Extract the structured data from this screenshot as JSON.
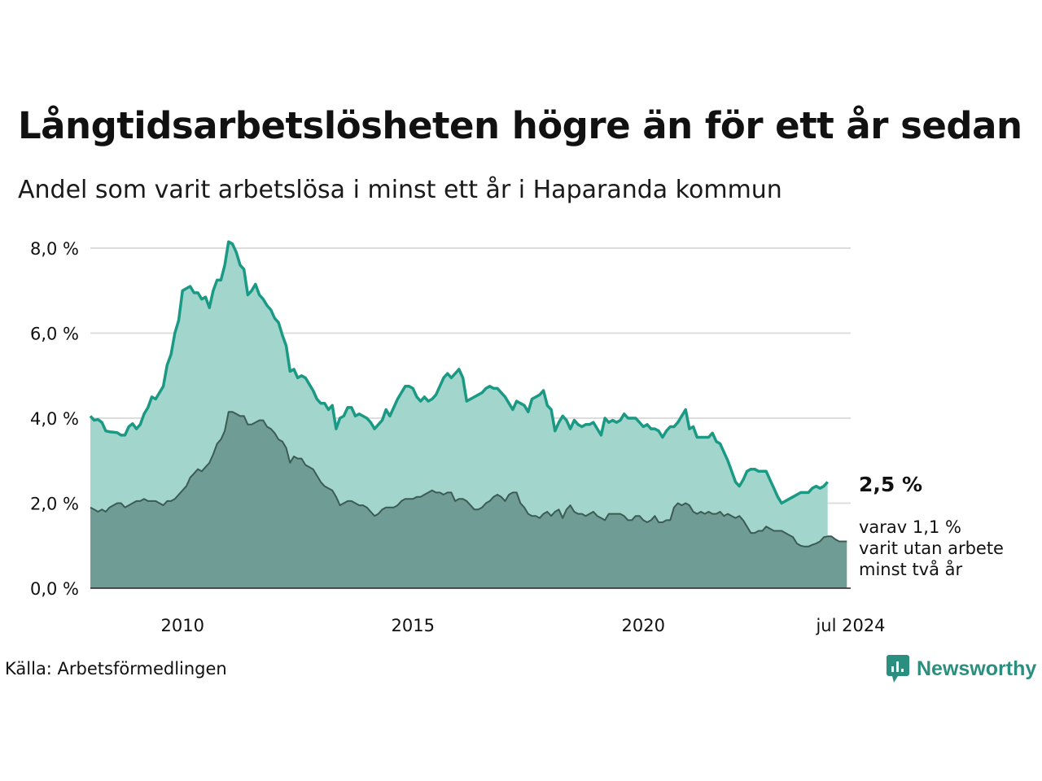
{
  "header": {
    "title": "Långtidsarbetslösheten högre än för ett år sedan",
    "subtitle": "Andel som varit arbetslösa i minst ett år i Haparanda kommun"
  },
  "footer": {
    "source": "Källa: Arbetsförmedlingen",
    "brand": "Newsworthy"
  },
  "colors": {
    "main_line": "#1a9984",
    "main_fill": "#a2d6cd",
    "sub_line": "#3c5b53",
    "sub_fill": "#6f9d95",
    "grid": "#dddddd",
    "brand": "#2a8f7f"
  },
  "chart_data": {
    "type": "area",
    "title": "Långtidsarbetslösheten högre än för ett år sedan",
    "xlabel": "",
    "ylabel": "",
    "x_start": 2008.0,
    "x_step_years": 0.0833333,
    "xlim": [
      2008.0,
      2024.5
    ],
    "ylim": [
      0,
      8
    ],
    "grid": true,
    "yticks": [
      0,
      2,
      4,
      6,
      8
    ],
    "ytick_labels": [
      "0,0 %",
      "2,0 %",
      "4,0 %",
      "6,0 %",
      "8,0 %"
    ],
    "xticks": [
      2010,
      2015,
      2020,
      2024.5
    ],
    "xtick_labels": [
      "2010",
      "2015",
      "2020",
      "jul 2024"
    ],
    "series": [
      {
        "name": "Andel som varit arbetslösa i minst ett år",
        "values": [
          4.05,
          3.95,
          3.97,
          3.9,
          3.7,
          3.68,
          3.67,
          3.66,
          3.6,
          3.6,
          3.8,
          3.87,
          3.75,
          3.85,
          4.1,
          4.25,
          4.5,
          4.45,
          4.6,
          4.75,
          5.25,
          5.5,
          6.0,
          6.3,
          7.0,
          7.05,
          7.1,
          6.95,
          6.95,
          6.8,
          6.85,
          6.6,
          7.0,
          7.25,
          7.25,
          7.6,
          8.15,
          8.1,
          7.9,
          7.6,
          7.5,
          6.9,
          7.0,
          7.15,
          6.9,
          6.8,
          6.65,
          6.55,
          6.35,
          6.25,
          5.95,
          5.7,
          5.1,
          5.15,
          4.95,
          5.0,
          4.95,
          4.8,
          4.65,
          4.45,
          4.35,
          4.35,
          4.2,
          4.3,
          3.75,
          4.0,
          4.05,
          4.25,
          4.25,
          4.05,
          4.1,
          4.05,
          4.0,
          3.9,
          3.75,
          3.85,
          3.95,
          4.2,
          4.05,
          4.25,
          4.45,
          4.6,
          4.75,
          4.75,
          4.7,
          4.5,
          4.4,
          4.5,
          4.4,
          4.45,
          4.55,
          4.75,
          4.95,
          5.05,
          4.95,
          5.05,
          5.15,
          4.95,
          4.4,
          4.45,
          4.5,
          4.55,
          4.6,
          4.7,
          4.75,
          4.7,
          4.7,
          4.6,
          4.5,
          4.35,
          4.2,
          4.4,
          4.35,
          4.3,
          4.15,
          4.45,
          4.5,
          4.55,
          4.65,
          4.3,
          4.2,
          3.7,
          3.9,
          4.05,
          3.95,
          3.75,
          3.95,
          3.85,
          3.8,
          3.85,
          3.85,
          3.9,
          3.75,
          3.6,
          4.0,
          3.9,
          3.95,
          3.9,
          3.95,
          4.1,
          4.0,
          4.0,
          4.0,
          3.9,
          3.8,
          3.85,
          3.75,
          3.75,
          3.7,
          3.55,
          3.7,
          3.8,
          3.8,
          3.9,
          4.05,
          4.2,
          3.75,
          3.8,
          3.55,
          3.55,
          3.55,
          3.55,
          3.65,
          3.45,
          3.4,
          3.2,
          3.0,
          2.75,
          2.5,
          2.4,
          2.55,
          2.75,
          2.8,
          2.8,
          2.75,
          2.75,
          2.75,
          2.55,
          2.35,
          2.15,
          2.0,
          2.05,
          2.1,
          2.15,
          2.2,
          2.25,
          2.25,
          2.25,
          2.35,
          2.4,
          2.35,
          2.4,
          2.5
        ]
      },
      {
        "name": "varav varit utan arbete minst två år",
        "values": [
          1.9,
          1.85,
          1.8,
          1.85,
          1.8,
          1.9,
          1.95,
          2.0,
          2.0,
          1.9,
          1.95,
          2.0,
          2.05,
          2.05,
          2.1,
          2.05,
          2.05,
          2.05,
          2.0,
          1.95,
          2.05,
          2.05,
          2.1,
          2.2,
          2.3,
          2.4,
          2.6,
          2.7,
          2.8,
          2.75,
          2.85,
          2.95,
          3.15,
          3.4,
          3.5,
          3.7,
          4.15,
          4.15,
          4.1,
          4.05,
          4.05,
          3.85,
          3.85,
          3.9,
          3.95,
          3.95,
          3.8,
          3.75,
          3.65,
          3.5,
          3.45,
          3.3,
          2.95,
          3.1,
          3.05,
          3.05,
          2.9,
          2.85,
          2.8,
          2.65,
          2.5,
          2.4,
          2.35,
          2.3,
          2.15,
          1.95,
          2.0,
          2.05,
          2.05,
          2.0,
          1.95,
          1.95,
          1.9,
          1.8,
          1.7,
          1.75,
          1.85,
          1.9,
          1.9,
          1.9,
          1.95,
          2.05,
          2.1,
          2.1,
          2.1,
          2.15,
          2.15,
          2.2,
          2.25,
          2.3,
          2.25,
          2.25,
          2.2,
          2.25,
          2.25,
          2.05,
          2.1,
          2.1,
          2.05,
          1.95,
          1.85,
          1.85,
          1.9,
          2.0,
          2.05,
          2.15,
          2.2,
          2.15,
          2.05,
          2.2,
          2.25,
          2.25,
          2.0,
          1.9,
          1.75,
          1.7,
          1.7,
          1.65,
          1.75,
          1.8,
          1.7,
          1.8,
          1.85,
          1.65,
          1.85,
          1.95,
          1.8,
          1.75,
          1.75,
          1.7,
          1.75,
          1.8,
          1.7,
          1.65,
          1.6,
          1.75,
          1.75,
          1.75,
          1.75,
          1.7,
          1.6,
          1.6,
          1.7,
          1.7,
          1.6,
          1.55,
          1.6,
          1.7,
          1.55,
          1.55,
          1.6,
          1.6,
          1.9,
          2.0,
          1.95,
          2.0,
          1.95,
          1.8,
          1.75,
          1.8,
          1.75,
          1.8,
          1.75,
          1.75,
          1.8,
          1.7,
          1.75,
          1.7,
          1.65,
          1.7,
          1.6,
          1.45,
          1.3,
          1.3,
          1.35,
          1.35,
          1.45,
          1.4,
          1.35,
          1.35,
          1.35,
          1.3,
          1.25,
          1.2,
          1.05,
          1.0,
          0.98,
          0.98,
          1.02,
          1.05,
          1.1,
          1.2,
          1.22,
          1.22,
          1.15,
          1.1,
          1.1,
          1.1
        ]
      }
    ],
    "annotations": {
      "last_value_label": "2,5 %",
      "sub_lines": [
        "varav 1,1 %",
        "varit utan arbete",
        "minst två år"
      ]
    }
  }
}
